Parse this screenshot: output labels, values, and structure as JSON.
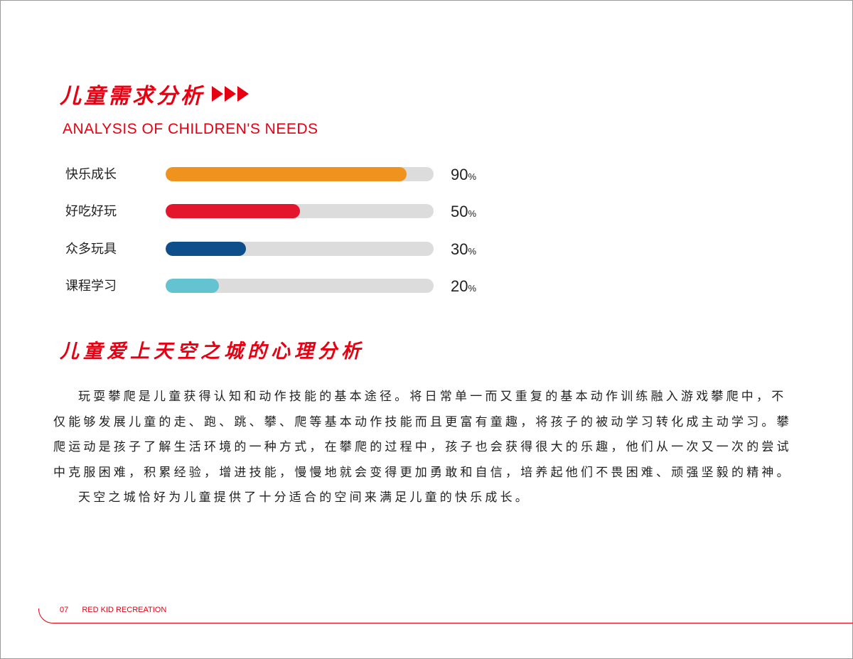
{
  "section1": {
    "title": "儿童需求分析",
    "subtitle": "ANALYSIS OF CHILDREN'S NEEDS",
    "accent_color": "#e60012"
  },
  "chart_data": {
    "type": "bar",
    "orientation": "horizontal",
    "categories": [
      "快乐成长",
      "好吃好玩",
      "众多玩具",
      "课程学习"
    ],
    "values": [
      90,
      50,
      30,
      20
    ],
    "value_labels": [
      "90",
      "50",
      "30",
      "20"
    ],
    "unit": "%",
    "colors": [
      "#f0931e",
      "#e3162d",
      "#0e4e8a",
      "#63c3d1"
    ],
    "xlim": [
      0,
      100
    ]
  },
  "section2": {
    "title": "儿童爱上天空之城的心理分析",
    "paragraph1": "玩耍攀爬是儿童获得认知和动作技能的基本途径。将日常单一而又重复的基本动作训练融入游戏攀爬中，不仅能够发展儿童的走、跑、跳、攀、爬等基本动作技能而且更富有童趣，将孩子的被动学习转化成主动学习。攀爬运动是孩子了解生活环境的一种方式，在攀爬的过程中，孩子也会获得很大的乐趣，他们从一次又一次的尝试中克服困难，积累经验，增进技能，慢慢地就会变得更加勇敢和自信，培养起他们不畏困难、顽强坚毅的精神。",
    "paragraph2": "天空之城恰好为儿童提供了十分适合的空间来满足儿童的快乐成长。"
  },
  "footer": {
    "page_number": "07",
    "brand": "RED KID RECREATION"
  }
}
